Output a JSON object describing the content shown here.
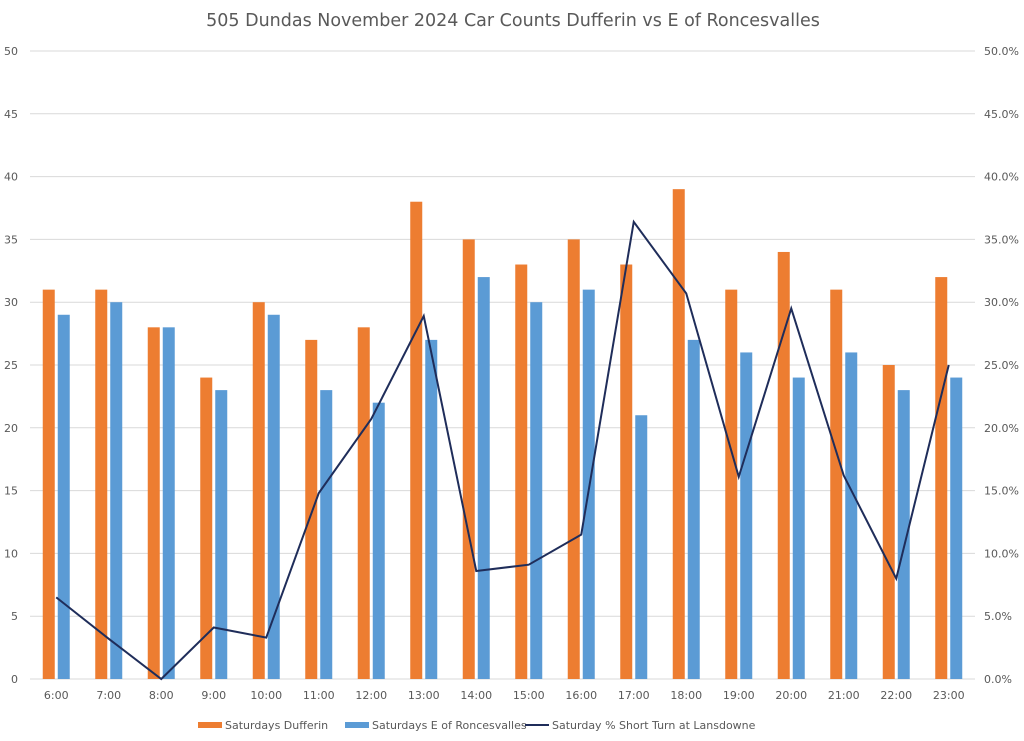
{
  "chart_data": {
    "type": "bar",
    "title": "505 Dundas November 2024 Car Counts Dufferin vs E of Roncesvalles",
    "xlabel": "",
    "ylabel": "",
    "categories": [
      "6:00",
      "7:00",
      "8:00",
      "9:00",
      "10:00",
      "11:00",
      "12:00",
      "13:00",
      "14:00",
      "15:00",
      "16:00",
      "17:00",
      "18:00",
      "19:00",
      "20:00",
      "21:00",
      "22:00",
      "23:00"
    ],
    "ylim": [
      0,
      50
    ],
    "y_ticks": [
      0,
      5,
      10,
      15,
      20,
      25,
      30,
      35,
      40,
      45,
      50
    ],
    "y2lim": [
      0,
      0.5
    ],
    "y2_ticks": [
      "0.0%",
      "5.0%",
      "10.0%",
      "15.0%",
      "20.0%",
      "25.0%",
      "30.0%",
      "35.0%",
      "40.0%",
      "45.0%",
      "50.0%"
    ],
    "grid": true,
    "legend_position": "bottom",
    "series": [
      {
        "name": "Saturdays Dufferin",
        "kind": "bar",
        "axis": "left",
        "color": "#ed7d31",
        "values": [
          31,
          31,
          28,
          24,
          30,
          27,
          28,
          38,
          35,
          33,
          35,
          33,
          39,
          31,
          34,
          31,
          25,
          32
        ]
      },
      {
        "name": "Saturdays E of Roncesvalles",
        "kind": "bar",
        "axis": "left",
        "color": "#5b9bd5",
        "values": [
          29,
          30,
          28,
          23,
          29,
          23,
          22,
          27,
          32,
          30,
          31,
          21,
          27,
          26,
          24,
          26,
          23,
          24
        ]
      },
      {
        "name": "Saturday % Short Turn at Lansdowne",
        "kind": "line",
        "axis": "right",
        "color": "#1f2d5a",
        "values": [
          0.065,
          0.032,
          0.0,
          0.041,
          0.033,
          0.148,
          0.207,
          0.289,
          0.086,
          0.091,
          0.115,
          0.364,
          0.307,
          0.161,
          0.295,
          0.162,
          0.08,
          0.25
        ]
      }
    ]
  }
}
